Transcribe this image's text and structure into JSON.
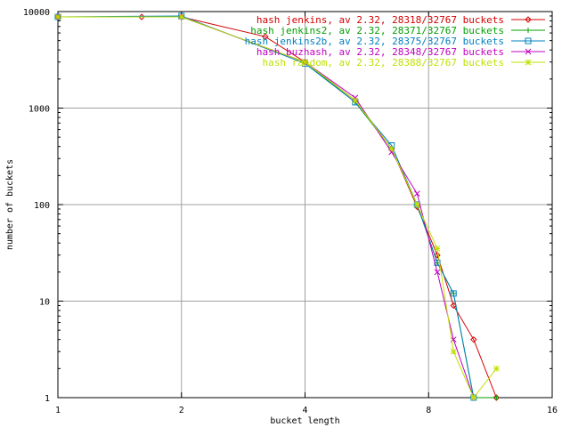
{
  "chart_data": {
    "type": "line",
    "xlabel": "bucket length",
    "ylabel": "number of buckets",
    "xscale": "log2",
    "yscale": "log10",
    "xlim": [
      1,
      16
    ],
    "ylim": [
      1,
      10000
    ],
    "xticks": [
      1,
      2,
      4,
      8,
      16
    ],
    "yticks": [
      1,
      10,
      100,
      1000,
      10000
    ],
    "xtick_labels": [
      "1",
      "2",
      "4",
      "8",
      "16"
    ],
    "ytick_labels": [
      "1",
      "10",
      "100",
      "1000",
      "10000"
    ],
    "grid": true,
    "legend_position": "top-right",
    "series": [
      {
        "name": "hash jenkins, av 2.32, 28318/32767 buckets",
        "color": "#d40000",
        "marker": "diamond",
        "x": [
          1,
          1.6,
          2,
          3.2,
          4,
          5.3,
          6.5,
          7.5,
          8.4,
          9.2,
          10.3,
          11.7
        ],
        "y": [
          8800,
          8800,
          8800,
          5500,
          3000,
          1200,
          380,
          95,
          30,
          9,
          4,
          1
        ]
      },
      {
        "name": "hash jenkins2, av 2.32, 28371/32767 buckets",
        "color": "#00a000",
        "marker": "plus",
        "x": [
          1,
          2,
          4,
          5.3,
          6.5,
          7.5,
          8.4,
          9.2,
          10.3,
          11.7
        ],
        "y": [
          8800,
          8800,
          3000,
          1150,
          380,
          100,
          25,
          12,
          1,
          1
        ]
      },
      {
        "name": "hash jenkins2b, av 2.32, 28375/32767 buckets",
        "color": "#0080c0",
        "marker": "square",
        "x": [
          1,
          2,
          4,
          5.3,
          6.5,
          7.5,
          8.4,
          9.2,
          10.3
        ],
        "y": [
          8800,
          9000,
          2900,
          1150,
          410,
          100,
          25,
          12,
          1
        ]
      },
      {
        "name": "hash buzhash, av 2.32, 28348/32767 buckets",
        "color": "#c000c0",
        "marker": "x",
        "x": [
          1,
          2,
          4,
          5.3,
          6.5,
          7.5,
          8.4,
          9.2,
          10.3
        ],
        "y": [
          8800,
          8800,
          3000,
          1280,
          350,
          130,
          20,
          4,
          1
        ]
      },
      {
        "name": "hash random, av 2.32, 28388/32767 buckets",
        "color": "#c0e000",
        "marker": "star",
        "x": [
          1,
          2,
          4,
          5.3,
          6.5,
          7.5,
          8.4,
          9.2,
          10.3,
          11.7
        ],
        "y": [
          8800,
          8800,
          3000,
          1200,
          380,
          100,
          35,
          3,
          1,
          2
        ]
      }
    ]
  }
}
